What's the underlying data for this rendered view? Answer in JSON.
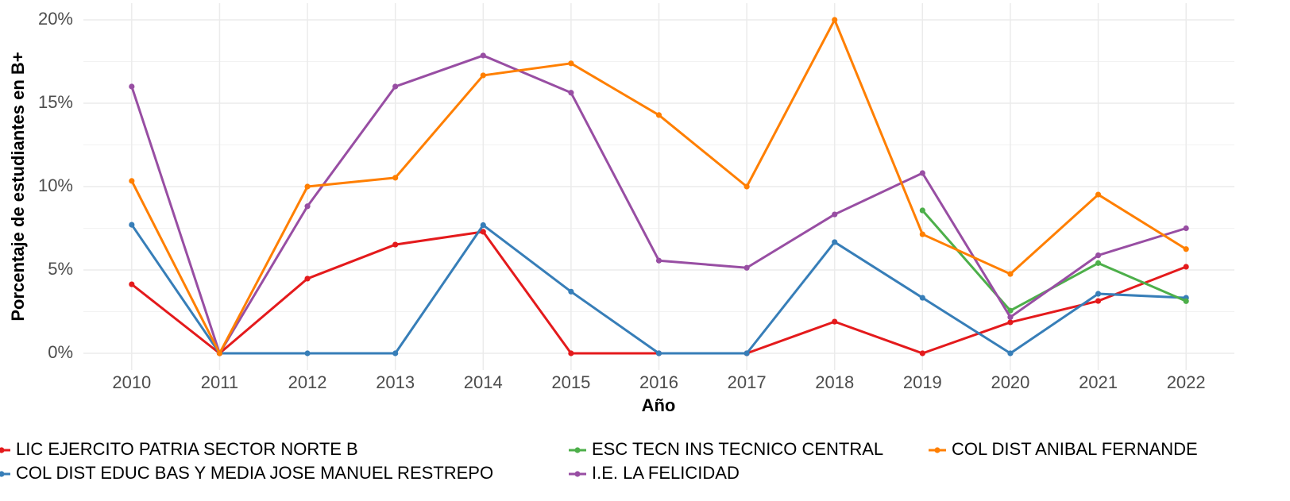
{
  "chart_data": {
    "type": "line",
    "x_label": "Año",
    "y_label": "Porcentaje de estudiantes en B+",
    "x": [
      2010,
      2011,
      2012,
      2013,
      2014,
      2015,
      2016,
      2017,
      2018,
      2019,
      2020,
      2021,
      2022
    ],
    "xlim": [
      2009.45,
      2022.55
    ],
    "xticks": [
      2010,
      2011,
      2012,
      2013,
      2014,
      2015,
      2016,
      2017,
      2018,
      2019,
      2020,
      2021,
      2022
    ],
    "ylim": [
      -1,
      21
    ],
    "yticks": [
      {
        "value": 0,
        "label": "0%"
      },
      {
        "value": 5,
        "label": "5%"
      },
      {
        "value": 10,
        "label": "10%"
      },
      {
        "value": 15,
        "label": "15%"
      },
      {
        "value": 20,
        "label": "20%"
      }
    ],
    "grid": true,
    "legend_position": "bottom",
    "series": [
      {
        "name": "LIC EJERCITO PATRIA SECTOR NORTE B",
        "color": "#e41a1c",
        "values": [
          4.14,
          0,
          4.48,
          6.52,
          7.29,
          0,
          0,
          0,
          1.9,
          0,
          1.86,
          3.14,
          5.19
        ]
      },
      {
        "name": "COL DIST EDUC BAS Y MEDIA JOSE MANUEL RESTREPO",
        "color": "#377eb8",
        "values": [
          7.71,
          0,
          0,
          0,
          7.69,
          3.7,
          0,
          0,
          6.67,
          3.33,
          0,
          3.57,
          3.33
        ]
      },
      {
        "name": "ESC TECN INS TECNICO CENTRAL",
        "color": "#4daf4a",
        "values": [
          null,
          null,
          null,
          null,
          null,
          null,
          null,
          null,
          null,
          8.57,
          2.56,
          5.41,
          3.13
        ]
      },
      {
        "name": "I.E. LA FELICIDAD",
        "color": "#984ea3",
        "values": [
          16,
          0,
          8.82,
          16,
          17.86,
          15.63,
          5.56,
          5.13,
          8.33,
          10.81,
          2.17,
          5.88,
          7.5
        ]
      },
      {
        "name": "COL DIST ANIBAL FERNANDE",
        "color": "#ff7f00",
        "values": [
          10.34,
          0,
          10,
          10.53,
          16.67,
          17.39,
          14.29,
          10,
          20,
          7.14,
          4.76,
          9.52,
          6.25
        ]
      }
    ]
  }
}
